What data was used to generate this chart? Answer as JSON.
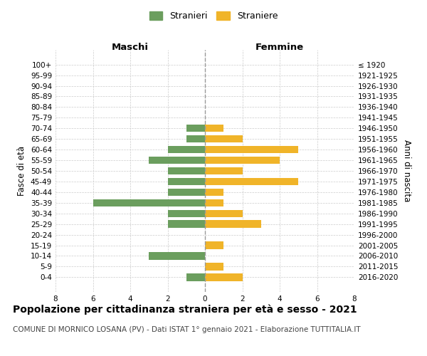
{
  "age_groups": [
    "100+",
    "95-99",
    "90-94",
    "85-89",
    "80-84",
    "75-79",
    "70-74",
    "65-69",
    "60-64",
    "55-59",
    "50-54",
    "45-49",
    "40-44",
    "35-39",
    "30-34",
    "25-29",
    "20-24",
    "15-19",
    "10-14",
    "5-9",
    "0-4"
  ],
  "birth_years": [
    "≤ 1920",
    "1921-1925",
    "1926-1930",
    "1931-1935",
    "1936-1940",
    "1941-1945",
    "1946-1950",
    "1951-1955",
    "1956-1960",
    "1961-1965",
    "1966-1970",
    "1971-1975",
    "1976-1980",
    "1981-1985",
    "1986-1990",
    "1991-1995",
    "1996-2000",
    "2001-2005",
    "2006-2010",
    "2011-2015",
    "2016-2020"
  ],
  "males": [
    0,
    0,
    0,
    0,
    0,
    0,
    1,
    1,
    2,
    3,
    2,
    2,
    2,
    6,
    2,
    2,
    0,
    0,
    3,
    0,
    1
  ],
  "females": [
    0,
    0,
    0,
    0,
    0,
    0,
    1,
    2,
    5,
    4,
    2,
    5,
    1,
    1,
    2,
    3,
    0,
    1,
    0,
    1,
    2
  ],
  "male_color": "#6b9e5e",
  "female_color": "#f0b429",
  "legend_male": "Stranieri",
  "legend_female": "Straniere",
  "label_maschi": "Maschi",
  "label_femmine": "Femmine",
  "ylabel_left": "Fasce di età",
  "ylabel_right": "Anni di nascita",
  "xlim": 8,
  "title": "Popolazione per cittadinanza straniera per età e sesso - 2021",
  "subtitle": "COMUNE DI MORNICO LOSANA (PV) - Dati ISTAT 1° gennaio 2021 - Elaborazione TUTTITALIA.IT",
  "bg_color": "#ffffff",
  "grid_color": "#cccccc",
  "title_fontsize": 10,
  "subtitle_fontsize": 7.5,
  "tick_fontsize": 7.5
}
